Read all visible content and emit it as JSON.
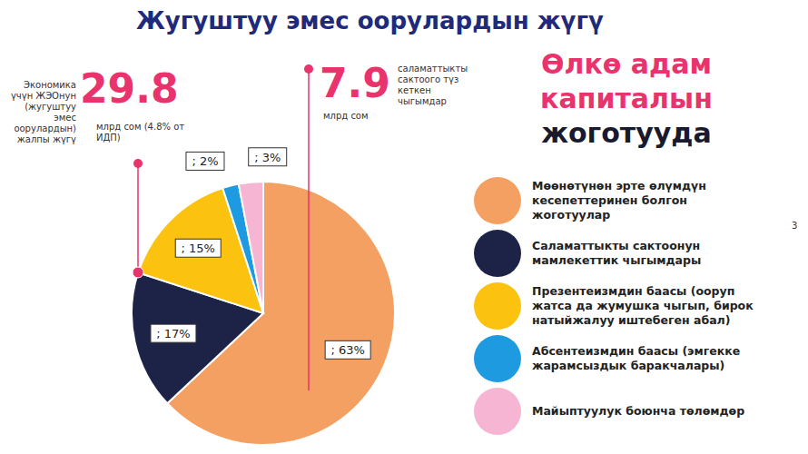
{
  "chart_data": {
    "type": "pie",
    "title": "Жугуштуу эмес оорулардын жүгү",
    "categories": [
      "Мөөнөтүнөн эрте өлүмдүн кесепеттеринен болгон жоготуулар",
      "Саламаттыкты сактоонун мамлекеттик чыгымдары",
      "Презентеизмдин баасы (ооруп жатса да жумушка чыгып, бирок натыйжалуу иштебеген абал)",
      "Абсентеизмдин баасы (эмгекке жарамсыздык баракчалары)",
      "Майыптуулук боюнча төлөмдөр"
    ],
    "values": [
      63,
      17,
      15,
      2,
      3
    ],
    "value_labels": [
      "; 63%",
      "; 17%",
      "; 15%",
      "; 2%",
      "; 3%"
    ],
    "colors": [
      "#f4a062",
      "#1c2347",
      "#fbc30f",
      "#1e9be0",
      "#f6b5d3"
    ],
    "data_labels": true,
    "legend": "right",
    "annotations": [
      {
        "value": 29.8,
        "unit": "млрд сом (4.8% от ИДП)",
        "text": "Экономика үчүн ЖЭОнун (жугуштуу эмес оорулардын) жалпы жүгү"
      },
      {
        "value": 7.9,
        "unit": "млрд сом",
        "text": "саламаттыкты сактоого түз кеткен чыгымдар"
      }
    ],
    "headline": [
      "Өлкө адам капиталын",
      "жоготууда"
    ],
    "page_number": "3"
  }
}
